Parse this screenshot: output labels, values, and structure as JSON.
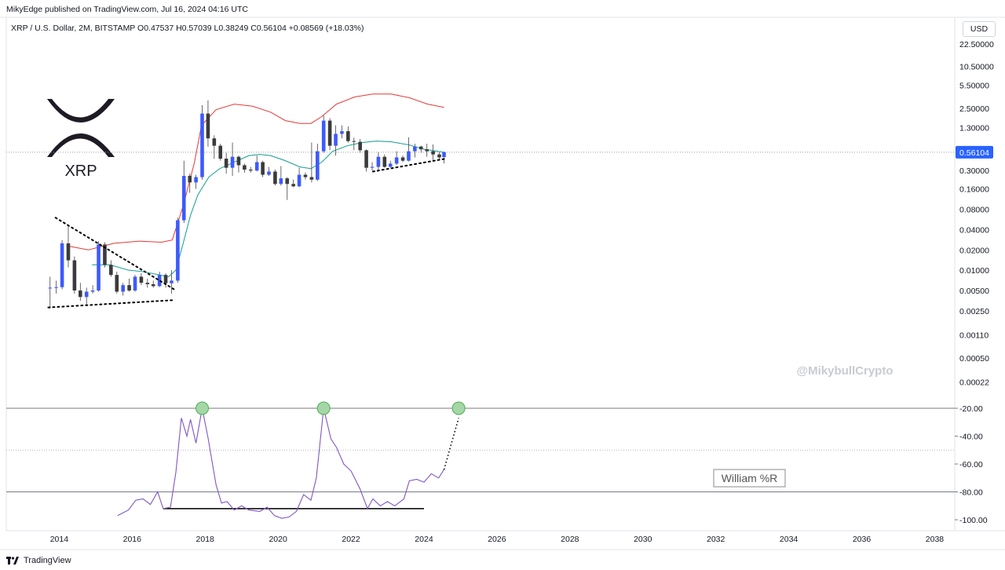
{
  "header": {
    "publisher_line": "MikyEdge published on TradingView.com, Jul 16, 2024 04:16 UTC",
    "symbol_line": "XRP / U.S. Dollar, 2M, BITSTAMP  O0.47537  H0.57039  L0.38249  C0.56104  +0.08569 (+18.03%)",
    "currency": "USD"
  },
  "logo": {
    "text": "XRP",
    "icon": "xrp-logo-icon"
  },
  "watermark": "@MikybullCrypto",
  "indicator_label": "William %R",
  "footer": {
    "brand": "TradingView"
  },
  "current_price_label": "0.56104",
  "colors": {
    "bull_candle": "#3d5afe",
    "bear_candle": "#3b3b3b",
    "upper_band": "#e53935",
    "moving_average": "#26a69a",
    "williams_line": "#7e57c2",
    "marker_fill": "#a5d6a7",
    "marker_stroke": "#4caf50"
  },
  "chart_data": [
    {
      "type": "candlestick",
      "title": "XRP / U.S. Dollar, 2M, BITSTAMP",
      "y_scale": "log",
      "ylim": [
        0.00018,
        28
      ],
      "xlim": [
        2012.55,
        2038.55
      ],
      "y_ticks": [
        "22.50000",
        "10.50000",
        "5.50000",
        "2.50000",
        "1.30000",
        "0.30000",
        "0.16000",
        "0.08000",
        "0.04000",
        "0.02000",
        "0.01000",
        "0.00500",
        "0.00250",
        "0.00110",
        "0.00050",
        "0.00022"
      ],
      "x_ticks": [
        "2014",
        "2016",
        "2018",
        "2020",
        "2022",
        "2024",
        "2026",
        "2028",
        "2030",
        "2032",
        "2034",
        "2036",
        "2038"
      ],
      "last_price": 0.56104,
      "candles": [
        {
          "t": 2013.75,
          "o": 0.0055,
          "h": 0.008,
          "l": 0.0027,
          "c": 0.0055
        },
        {
          "t": 2013.92,
          "o": 0.0055,
          "h": 0.007,
          "l": 0.0045,
          "c": 0.0056
        },
        {
          "t": 2014.08,
          "o": 0.0056,
          "h": 0.028,
          "l": 0.0052,
          "c": 0.025
        },
        {
          "t": 2014.25,
          "o": 0.025,
          "h": 0.045,
          "l": 0.011,
          "c": 0.014
        },
        {
          "t": 2014.42,
          "o": 0.014,
          "h": 0.016,
          "l": 0.0045,
          "c": 0.005
        },
        {
          "t": 2014.58,
          "o": 0.005,
          "h": 0.0065,
          "l": 0.0035,
          "c": 0.004
        },
        {
          "t": 2014.75,
          "o": 0.004,
          "h": 0.0055,
          "l": 0.003,
          "c": 0.0048
        },
        {
          "t": 2014.92,
          "o": 0.0048,
          "h": 0.006,
          "l": 0.0045,
          "c": 0.005
        },
        {
          "t": 2015.08,
          "o": 0.005,
          "h": 0.027,
          "l": 0.0048,
          "c": 0.024
        },
        {
          "t": 2015.25,
          "o": 0.024,
          "h": 0.026,
          "l": 0.011,
          "c": 0.012
        },
        {
          "t": 2015.42,
          "o": 0.012,
          "h": 0.014,
          "l": 0.008,
          "c": 0.0085
        },
        {
          "t": 2015.58,
          "o": 0.0085,
          "h": 0.0095,
          "l": 0.0045,
          "c": 0.0048
        },
        {
          "t": 2015.75,
          "o": 0.0048,
          "h": 0.0065,
          "l": 0.0042,
          "c": 0.006
        },
        {
          "t": 2015.92,
          "o": 0.006,
          "h": 0.0075,
          "l": 0.0048,
          "c": 0.005
        },
        {
          "t": 2016.08,
          "o": 0.005,
          "h": 0.0085,
          "l": 0.0048,
          "c": 0.008
        },
        {
          "t": 2016.25,
          "o": 0.008,
          "h": 0.009,
          "l": 0.006,
          "c": 0.0065
        },
        {
          "t": 2016.42,
          "o": 0.0065,
          "h": 0.0075,
          "l": 0.0055,
          "c": 0.0062
        },
        {
          "t": 2016.58,
          "o": 0.0062,
          "h": 0.007,
          "l": 0.0055,
          "c": 0.0058
        },
        {
          "t": 2016.75,
          "o": 0.0058,
          "h": 0.0095,
          "l": 0.0056,
          "c": 0.0085
        },
        {
          "t": 2016.92,
          "o": 0.0085,
          "h": 0.009,
          "l": 0.0055,
          "c": 0.0064
        },
        {
          "t": 2017.08,
          "o": 0.0064,
          "h": 0.01,
          "l": 0.0045,
          "c": 0.007
        },
        {
          "t": 2017.25,
          "o": 0.007,
          "h": 0.06,
          "l": 0.0065,
          "c": 0.055
        },
        {
          "t": 2017.42,
          "o": 0.055,
          "h": 0.42,
          "l": 0.05,
          "c": 0.25
        },
        {
          "t": 2017.58,
          "o": 0.25,
          "h": 0.27,
          "l": 0.14,
          "c": 0.2
        },
        {
          "t": 2017.75,
          "o": 0.2,
          "h": 0.26,
          "l": 0.16,
          "c": 0.24
        },
        {
          "t": 2017.92,
          "o": 0.24,
          "h": 2.8,
          "l": 0.22,
          "c": 2.1
        },
        {
          "t": 2018.08,
          "o": 2.1,
          "h": 3.3,
          "l": 0.68,
          "c": 0.9
        },
        {
          "t": 2018.25,
          "o": 0.9,
          "h": 1.0,
          "l": 0.45,
          "c": 0.7
        },
        {
          "t": 2018.42,
          "o": 0.7,
          "h": 0.75,
          "l": 0.42,
          "c": 0.45
        },
        {
          "t": 2018.58,
          "o": 0.45,
          "h": 0.55,
          "l": 0.27,
          "c": 0.33
        },
        {
          "t": 2018.75,
          "o": 0.33,
          "h": 0.78,
          "l": 0.25,
          "c": 0.48
        },
        {
          "t": 2018.92,
          "o": 0.48,
          "h": 0.5,
          "l": 0.28,
          "c": 0.36
        },
        {
          "t": 2019.08,
          "o": 0.36,
          "h": 0.38,
          "l": 0.28,
          "c": 0.31
        },
        {
          "t": 2019.25,
          "o": 0.31,
          "h": 0.34,
          "l": 0.28,
          "c": 0.3
        },
        {
          "t": 2019.42,
          "o": 0.3,
          "h": 0.5,
          "l": 0.29,
          "c": 0.4
        },
        {
          "t": 2019.58,
          "o": 0.4,
          "h": 0.42,
          "l": 0.24,
          "c": 0.26
        },
        {
          "t": 2019.75,
          "o": 0.26,
          "h": 0.34,
          "l": 0.25,
          "c": 0.29
        },
        {
          "t": 2019.92,
          "o": 0.29,
          "h": 0.31,
          "l": 0.18,
          "c": 0.19
        },
        {
          "t": 2020.08,
          "o": 0.19,
          "h": 0.35,
          "l": 0.18,
          "c": 0.23
        },
        {
          "t": 2020.25,
          "o": 0.23,
          "h": 0.24,
          "l": 0.11,
          "c": 0.19
        },
        {
          "t": 2020.42,
          "o": 0.19,
          "h": 0.22,
          "l": 0.17,
          "c": 0.175
        },
        {
          "t": 2020.58,
          "o": 0.175,
          "h": 0.33,
          "l": 0.17,
          "c": 0.26
        },
        {
          "t": 2020.75,
          "o": 0.26,
          "h": 0.28,
          "l": 0.22,
          "c": 0.24
        },
        {
          "t": 2020.92,
          "o": 0.24,
          "h": 0.78,
          "l": 0.2,
          "c": 0.22
        },
        {
          "t": 2021.08,
          "o": 0.22,
          "h": 0.75,
          "l": 0.21,
          "c": 0.58
        },
        {
          "t": 2021.25,
          "o": 0.58,
          "h": 1.96,
          "l": 0.55,
          "c": 1.65
        },
        {
          "t": 2021.42,
          "o": 1.65,
          "h": 1.8,
          "l": 0.6,
          "c": 0.7
        },
        {
          "t": 2021.58,
          "o": 0.7,
          "h": 1.4,
          "l": 0.5,
          "c": 1.05
        },
        {
          "t": 2021.75,
          "o": 1.05,
          "h": 1.4,
          "l": 0.9,
          "c": 1.15
        },
        {
          "t": 2021.92,
          "o": 1.15,
          "h": 1.35,
          "l": 0.78,
          "c": 0.82
        },
        {
          "t": 2022.08,
          "o": 0.82,
          "h": 0.92,
          "l": 0.6,
          "c": 0.8
        },
        {
          "t": 2022.25,
          "o": 0.8,
          "h": 0.88,
          "l": 0.55,
          "c": 0.6
        },
        {
          "t": 2022.42,
          "o": 0.6,
          "h": 0.62,
          "l": 0.29,
          "c": 0.33
        },
        {
          "t": 2022.58,
          "o": 0.33,
          "h": 0.4,
          "l": 0.3,
          "c": 0.34
        },
        {
          "t": 2022.75,
          "o": 0.34,
          "h": 0.56,
          "l": 0.31,
          "c": 0.48
        },
        {
          "t": 2022.92,
          "o": 0.48,
          "h": 0.52,
          "l": 0.33,
          "c": 0.34
        },
        {
          "t": 2023.08,
          "o": 0.34,
          "h": 0.42,
          "l": 0.33,
          "c": 0.38
        },
        {
          "t": 2023.25,
          "o": 0.38,
          "h": 0.58,
          "l": 0.36,
          "c": 0.47
        },
        {
          "t": 2023.42,
          "o": 0.47,
          "h": 0.5,
          "l": 0.4,
          "c": 0.42
        },
        {
          "t": 2023.58,
          "o": 0.42,
          "h": 0.93,
          "l": 0.41,
          "c": 0.58
        },
        {
          "t": 2023.75,
          "o": 0.58,
          "h": 0.75,
          "l": 0.47,
          "c": 0.68
        },
        {
          "t": 2023.92,
          "o": 0.68,
          "h": 0.7,
          "l": 0.55,
          "c": 0.62
        },
        {
          "t": 2024.08,
          "o": 0.62,
          "h": 0.75,
          "l": 0.48,
          "c": 0.58
        },
        {
          "t": 2024.25,
          "o": 0.58,
          "h": 0.73,
          "l": 0.42,
          "c": 0.52
        },
        {
          "t": 2024.42,
          "o": 0.52,
          "h": 0.56,
          "l": 0.43,
          "c": 0.47
        },
        {
          "t": 2024.55,
          "o": 0.47537,
          "h": 0.57039,
          "l": 0.38249,
          "c": 0.56104
        }
      ],
      "upper_band": [
        [
          2014.2,
          0.023
        ],
        [
          2014.8,
          0.02
        ],
        [
          2015.5,
          0.025
        ],
        [
          2016.2,
          0.027
        ],
        [
          2016.8,
          0.026
        ],
        [
          2017.1,
          0.028
        ],
        [
          2017.4,
          0.09
        ],
        [
          2017.7,
          0.38
        ],
        [
          2017.9,
          1.4
        ],
        [
          2018.3,
          2.4
        ],
        [
          2018.8,
          2.9
        ],
        [
          2019.3,
          2.7
        ],
        [
          2019.8,
          2.2
        ],
        [
          2020.2,
          1.65
        ],
        [
          2020.6,
          1.5
        ],
        [
          2020.9,
          1.5
        ],
        [
          2021.2,
          1.9
        ],
        [
          2021.6,
          2.9
        ],
        [
          2022.1,
          3.7
        ],
        [
          2022.6,
          4.1
        ],
        [
          2023.1,
          4.1
        ],
        [
          2023.6,
          3.6
        ],
        [
          2024.1,
          2.9
        ],
        [
          2024.55,
          2.6
        ]
      ],
      "moving_average": [
        [
          2014.9,
          0.012
        ],
        [
          2015.4,
          0.012
        ],
        [
          2015.9,
          0.01
        ],
        [
          2016.3,
          0.0095
        ],
        [
          2016.7,
          0.0086
        ],
        [
          2017.0,
          0.008
        ],
        [
          2017.2,
          0.01
        ],
        [
          2017.4,
          0.025
        ],
        [
          2017.6,
          0.065
        ],
        [
          2017.8,
          0.13
        ],
        [
          2018.1,
          0.24
        ],
        [
          2018.4,
          0.32
        ],
        [
          2018.8,
          0.4
        ],
        [
          2019.2,
          0.5
        ],
        [
          2019.5,
          0.52
        ],
        [
          2019.8,
          0.5
        ],
        [
          2020.2,
          0.42
        ],
        [
          2020.6,
          0.34
        ],
        [
          2020.9,
          0.32
        ],
        [
          2021.2,
          0.4
        ],
        [
          2021.5,
          0.58
        ],
        [
          2021.9,
          0.7
        ],
        [
          2022.3,
          0.78
        ],
        [
          2022.7,
          0.82
        ],
        [
          2023.1,
          0.8
        ],
        [
          2023.6,
          0.72
        ],
        [
          2024.0,
          0.62
        ],
        [
          2024.55,
          0.56
        ]
      ],
      "trendlines": [
        {
          "name": "triangle-upper",
          "points": [
            [
              2013.9,
              0.06
            ],
            [
              2017.15,
              0.0052
            ]
          ]
        },
        {
          "name": "triangle-lower",
          "points": [
            [
              2013.7,
              0.0028
            ],
            [
              2017.15,
              0.0036
            ]
          ]
        },
        {
          "name": "support-2022-2024",
          "points": [
            [
              2022.6,
              0.29
            ],
            [
              2024.6,
              0.45
            ]
          ]
        }
      ]
    },
    {
      "type": "line",
      "name": "William %R",
      "ylim": [
        -103,
        -5
      ],
      "y_ticks": [
        "-20.00",
        "-40.00",
        "-60.00",
        "-80.00",
        "-100.00"
      ],
      "levels": [
        -20,
        -50,
        -80
      ],
      "series": [
        {
          "name": "William %R",
          "values": [
            [
              2015.6,
              -97
            ],
            [
              2015.9,
              -93
            ],
            [
              2016.1,
              -86
            ],
            [
              2016.3,
              -85
            ],
            [
              2016.5,
              -89
            ],
            [
              2016.7,
              -80
            ],
            [
              2016.85,
              -92
            ],
            [
              2017.05,
              -91
            ],
            [
              2017.2,
              -66
            ],
            [
              2017.35,
              -27
            ],
            [
              2017.5,
              -40
            ],
            [
              2017.6,
              -28
            ],
            [
              2017.75,
              -45
            ],
            [
              2017.92,
              -20
            ],
            [
              2018.08,
              -41
            ],
            [
              2018.3,
              -75
            ],
            [
              2018.45,
              -88
            ],
            [
              2018.6,
              -87
            ],
            [
              2018.8,
              -93
            ],
            [
              2019.0,
              -90
            ],
            [
              2019.2,
              -93
            ],
            [
              2019.5,
              -94
            ],
            [
              2019.7,
              -91
            ],
            [
              2019.9,
              -97
            ],
            [
              2020.1,
              -99
            ],
            [
              2020.3,
              -98
            ],
            [
              2020.5,
              -94
            ],
            [
              2020.7,
              -82
            ],
            [
              2020.9,
              -86
            ],
            [
              2021.05,
              -70
            ],
            [
              2021.25,
              -20
            ],
            [
              2021.45,
              -42
            ],
            [
              2021.6,
              -48
            ],
            [
              2021.8,
              -60
            ],
            [
              2022.0,
              -65
            ],
            [
              2022.25,
              -78
            ],
            [
              2022.45,
              -92
            ],
            [
              2022.6,
              -85
            ],
            [
              2022.8,
              -90
            ],
            [
              2023.0,
              -87
            ],
            [
              2023.2,
              -90
            ],
            [
              2023.45,
              -85
            ],
            [
              2023.6,
              -72
            ],
            [
              2023.8,
              -71
            ],
            [
              2024.0,
              -73
            ],
            [
              2024.2,
              -67
            ],
            [
              2024.4,
              -70
            ],
            [
              2024.55,
              -64
            ]
          ]
        }
      ],
      "baseline": [
        [
          2016.85,
          -92
        ],
        [
          2024.0,
          -92
        ]
      ],
      "projection": [
        [
          2024.55,
          -64
        ],
        [
          2024.95,
          -27
        ]
      ],
      "markers": [
        [
          2017.92,
          -20
        ],
        [
          2021.25,
          -20
        ],
        [
          2024.95,
          -20
        ]
      ]
    }
  ]
}
